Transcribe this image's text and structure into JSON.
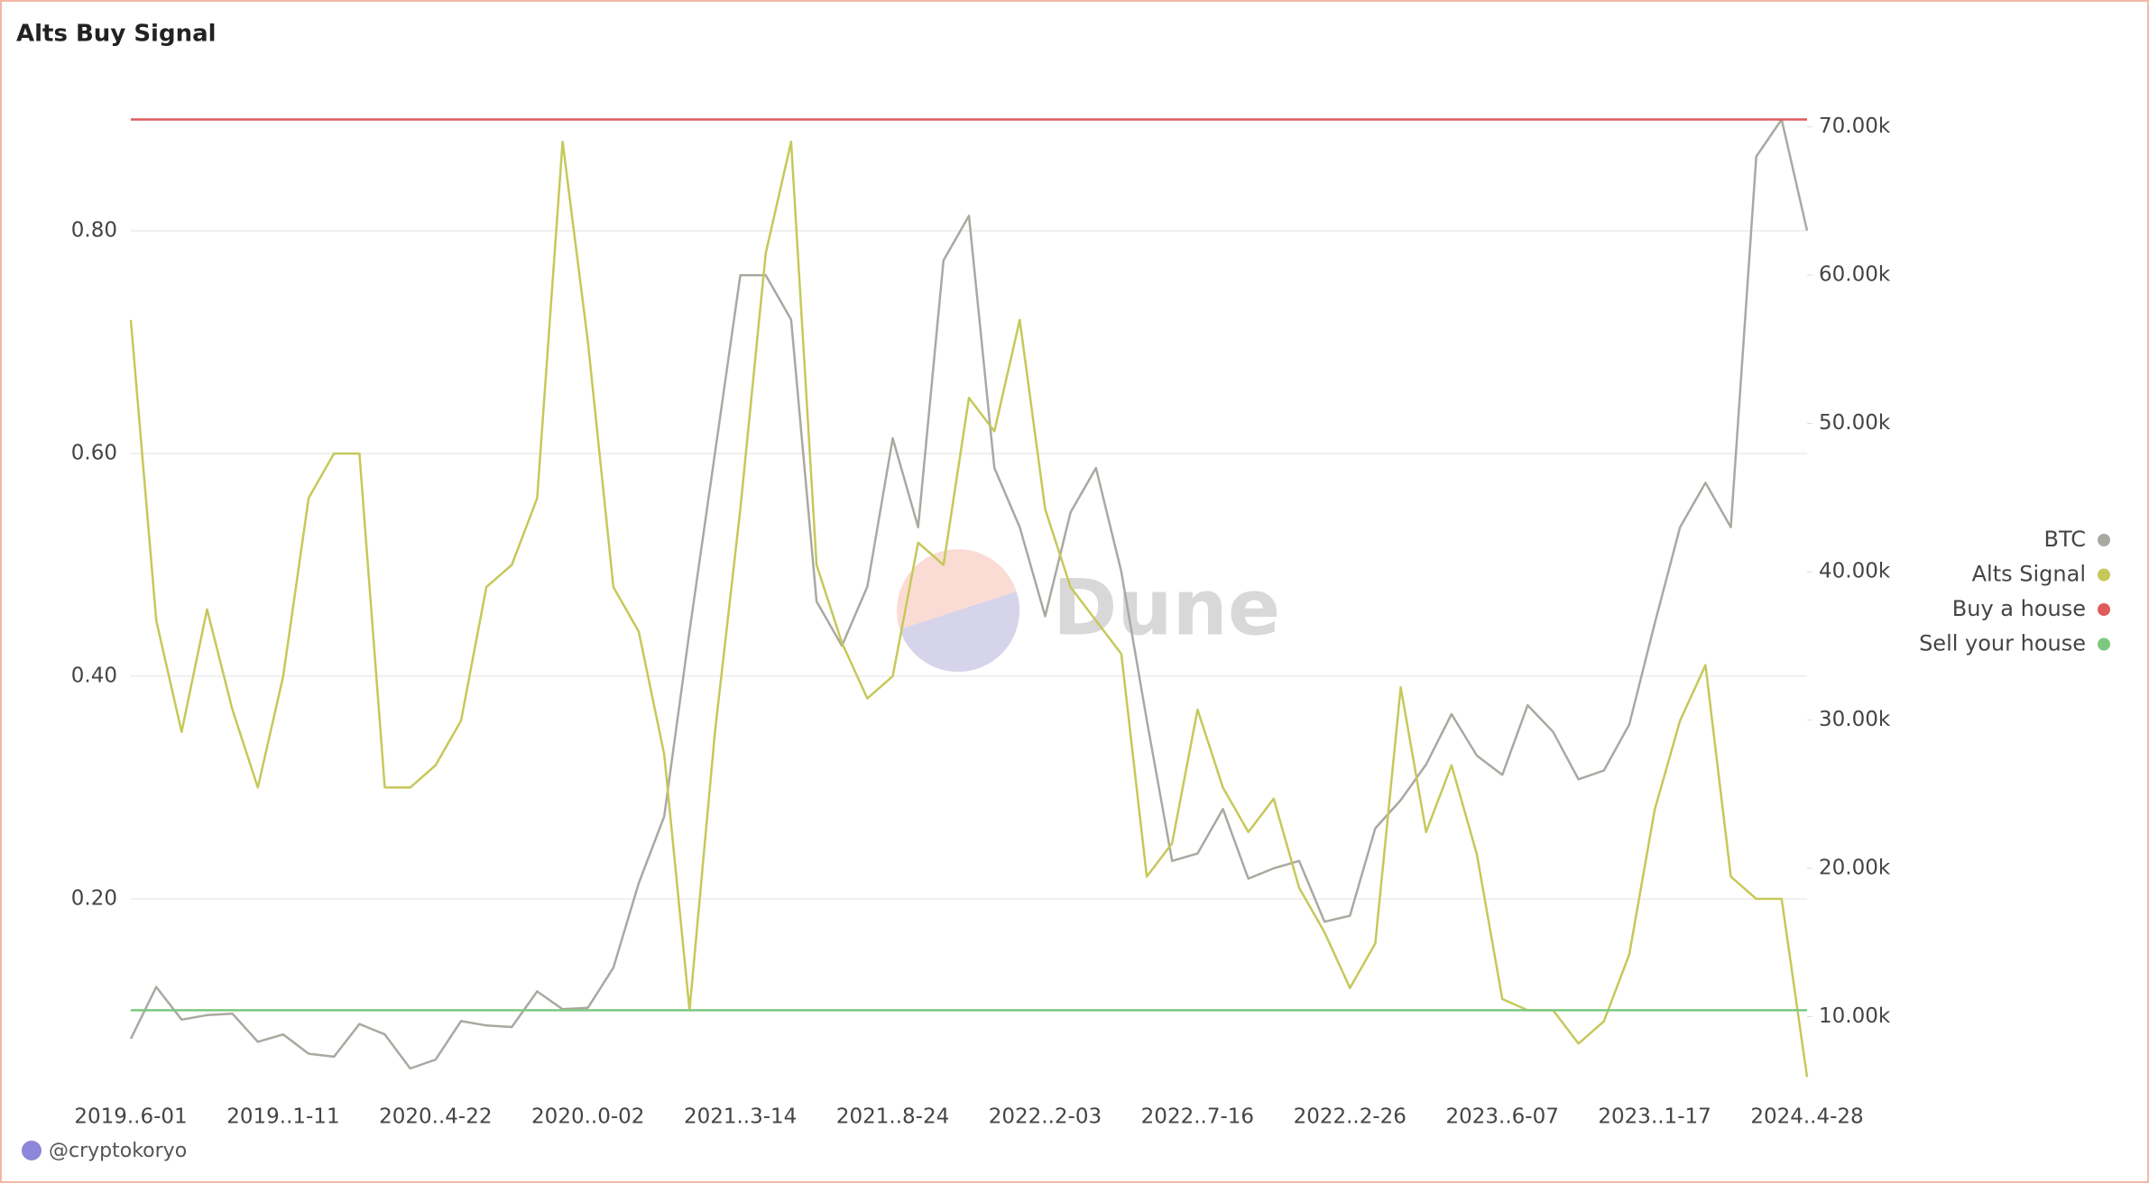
{
  "chart_data": {
    "type": "line",
    "title": "Alts Buy Signal",
    "watermark": "Dune",
    "footer": "@cryptokoryo",
    "categories": [
      "2019..6-01",
      null,
      null,
      null,
      null,
      null,
      "2019..1-11",
      null,
      null,
      null,
      null,
      null,
      "2020..4-22",
      null,
      null,
      null,
      null,
      null,
      "2020..0-02",
      null,
      null,
      null,
      null,
      null,
      "2021..3-14",
      null,
      null,
      null,
      null,
      null,
      "2021..8-24",
      null,
      null,
      null,
      null,
      null,
      "2022..2-03",
      null,
      null,
      null,
      null,
      null,
      "2022..7-16",
      null,
      null,
      null,
      null,
      null,
      "2022..2-26",
      null,
      null,
      null,
      null,
      null,
      "2023..6-07",
      null,
      null,
      null,
      null,
      null,
      "2023..1-17",
      null,
      null,
      null,
      null,
      null,
      "2024..4-28"
    ],
    "series": [
      {
        "name": "BTC",
        "color": "#a9a9a1",
        "axis": "y2",
        "values": [
          8500,
          12000,
          9800,
          10100,
          10200,
          8300,
          8800,
          7500,
          7300,
          9500,
          8800,
          6500,
          7100,
          9700,
          9400,
          9300,
          11700,
          10500,
          10600,
          13300,
          19000,
          23500,
          36000,
          48000,
          60000,
          60000,
          57000,
          38000,
          35000,
          39000,
          49000,
          43000,
          61000,
          64000,
          47000,
          43000,
          37000,
          44000,
          47000,
          40000,
          30000,
          20500,
          21000,
          24000,
          19300,
          20000,
          20500,
          16400,
          16800,
          22700,
          24600,
          27000,
          30400,
          27600,
          26300,
          31000,
          29200,
          26000,
          26600,
          29700,
          36500,
          43000,
          46000,
          43000,
          68000,
          70500,
          63000
        ]
      },
      {
        "name": "Alts Signal",
        "color": "#c6c85a",
        "values": [
          0.72,
          0.45,
          0.35,
          0.46,
          0.37,
          0.3,
          0.4,
          0.56,
          0.6,
          0.6,
          0.3,
          0.3,
          0.32,
          0.36,
          0.48,
          0.5,
          0.56,
          0.88,
          0.7,
          0.48,
          0.44,
          0.33,
          0.1,
          0.35,
          0.55,
          0.78,
          0.88,
          0.5,
          0.43,
          0.38,
          0.4,
          0.52,
          0.5,
          0.65,
          0.62,
          0.72,
          0.55,
          0.48,
          0.45,
          0.42,
          0.22,
          0.25,
          0.37,
          0.3,
          0.26,
          0.29,
          0.21,
          0.17,
          0.12,
          0.16,
          0.39,
          0.26,
          0.32,
          0.24,
          0.11,
          0.1,
          0.1,
          0.07,
          0.09,
          0.15,
          0.28,
          0.36,
          0.41,
          0.22,
          0.2,
          0.2,
          0.04
        ]
      },
      {
        "name": "Buy a house",
        "color": "#e05c5c",
        "values": [
          0.9,
          0.9,
          0.9,
          0.9,
          0.9,
          0.9,
          0.9,
          0.9,
          0.9,
          0.9,
          0.9,
          0.9,
          0.9,
          0.9,
          0.9,
          0.9,
          0.9,
          0.9,
          0.9,
          0.9,
          0.9,
          0.9,
          0.9,
          0.9,
          0.9,
          0.9,
          0.9,
          0.9,
          0.9,
          0.9,
          0.9,
          0.9,
          0.9,
          0.9,
          0.9,
          0.9,
          0.9,
          0.9,
          0.9,
          0.9,
          0.9,
          0.9,
          0.9,
          0.9,
          0.9,
          0.9,
          0.9,
          0.9,
          0.9,
          0.9,
          0.9,
          0.9,
          0.9,
          0.9,
          0.9,
          0.9,
          0.9,
          0.9,
          0.9,
          0.9,
          0.9,
          0.9,
          0.9,
          0.9,
          0.9,
          0.9,
          0.9
        ]
      },
      {
        "name": "Sell your house",
        "color": "#7dc87f",
        "values": [
          0.1,
          0.1,
          0.1,
          0.1,
          0.1,
          0.1,
          0.1,
          0.1,
          0.1,
          0.1,
          0.1,
          0.1,
          0.1,
          0.1,
          0.1,
          0.1,
          0.1,
          0.1,
          0.1,
          0.1,
          0.1,
          0.1,
          0.1,
          0.1,
          0.1,
          0.1,
          0.1,
          0.1,
          0.1,
          0.1,
          0.1,
          0.1,
          0.1,
          0.1,
          0.1,
          0.1,
          0.1,
          0.1,
          0.1,
          0.1,
          0.1,
          0.1,
          0.1,
          0.1,
          0.1,
          0.1,
          0.1,
          0.1,
          0.1,
          0.1,
          0.1,
          0.1,
          0.1,
          0.1,
          0.1,
          0.1,
          0.1,
          0.1,
          0.1,
          0.1,
          0.1,
          0.1,
          0.1,
          0.1,
          0.1,
          0.1,
          0.1
        ]
      }
    ],
    "ylim": [
      0.025,
      0.932
    ],
    "yticks": [
      {
        "value": 0.2,
        "label": "0.20"
      },
      {
        "value": 0.4,
        "label": "0.40"
      },
      {
        "value": 0.6,
        "label": "0.60"
      },
      {
        "value": 0.8,
        "label": "0.80"
      }
    ],
    "y2lim": [
      4800,
      72900
    ],
    "y2ticks": [
      {
        "value": 10000,
        "label": "10.00k"
      },
      {
        "value": 20000,
        "label": "20.00k"
      },
      {
        "value": 30000,
        "label": "30.00k"
      },
      {
        "value": 40000,
        "label": "40.00k"
      },
      {
        "value": 50000,
        "label": "50.00k"
      },
      {
        "value": 60000,
        "label": "60.00k"
      },
      {
        "value": 70000,
        "label": "70.00k"
      }
    ],
    "grid": true,
    "legend": "right"
  }
}
